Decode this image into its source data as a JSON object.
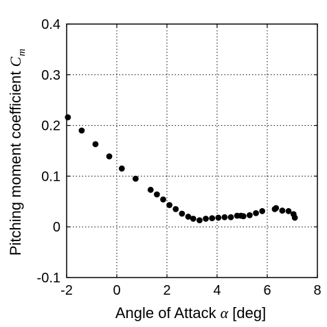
{
  "chart_data": {
    "type": "scatter",
    "title": "",
    "xlabel": "Angle of Attack",
    "xlabel_symbol": "α",
    "xlabel_unit": " [deg]",
    "ylabel": "Pitching moment coefficient ",
    "ylabel_symbol": "C",
    "ylabel_subscript": "m",
    "xlim": [
      -2,
      8
    ],
    "ylim": [
      -0.1,
      0.4
    ],
    "xticks": [
      -2,
      0,
      2,
      4,
      6,
      8
    ],
    "yticks": [
      -0.1,
      0,
      0.1,
      0.2,
      0.3,
      0.4
    ],
    "xtick_labels": [
      "-2",
      "0",
      "2",
      "4",
      "6",
      "8"
    ],
    "ytick_labels": [
      "-0.1",
      "0",
      "0.1",
      "0.2",
      "0.3",
      "0.4"
    ],
    "grid": true,
    "marker_color": "#000000",
    "series": [
      {
        "x": [
          -1.95,
          -1.4,
          -0.85,
          -0.3,
          0.2,
          0.75,
          1.35,
          1.6,
          1.85,
          2.1,
          2.35,
          2.6,
          2.85,
          3.05,
          3.3,
          3.55,
          3.8,
          4.05,
          4.3,
          4.55,
          4.8,
          4.95,
          5.05,
          5.3,
          5.55,
          5.8,
          6.3,
          6.35,
          6.6,
          6.85,
          7.05,
          7.1
        ],
        "y": [
          0.216,
          0.19,
          0.163,
          0.139,
          0.115,
          0.095,
          0.073,
          0.064,
          0.054,
          0.043,
          0.035,
          0.026,
          0.02,
          0.016,
          0.013,
          0.016,
          0.017,
          0.018,
          0.019,
          0.019,
          0.022,
          0.022,
          0.021,
          0.023,
          0.027,
          0.031,
          0.035,
          0.037,
          0.032,
          0.031,
          0.025,
          0.018
        ]
      }
    ]
  }
}
